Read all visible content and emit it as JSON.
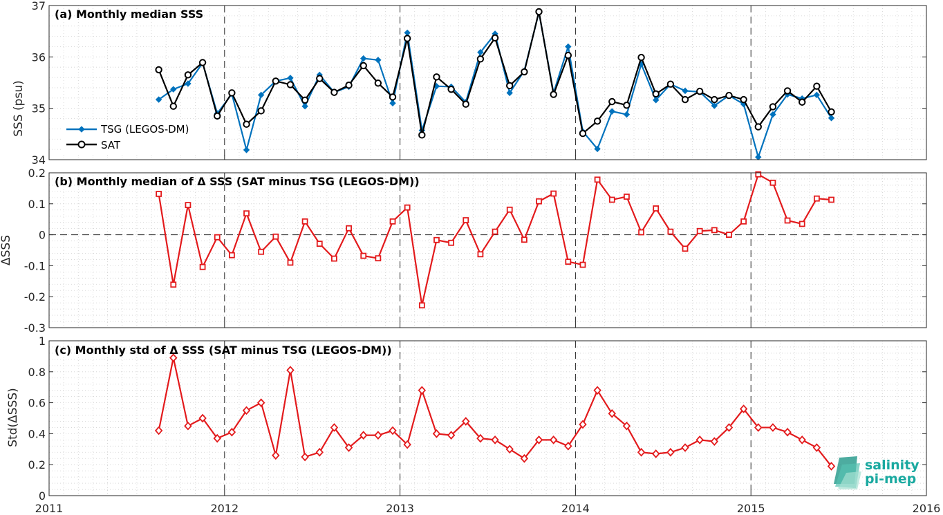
{
  "chart_data": [
    {
      "type": "line",
      "title": "(a) Monthly median SSS",
      "ylabel": "SSS (psu)",
      "ylim": [
        34,
        37
      ],
      "yticks": [
        34,
        35,
        36,
        37
      ],
      "xlim": [
        "2011",
        "2016"
      ],
      "xticks": [
        "2011",
        "2012",
        "2013",
        "2014",
        "2015",
        "2016"
      ],
      "grid": "minor dotted",
      "legend": "bottom-left",
      "x": [
        "2011-08",
        "2011-09",
        "2011-10",
        "2011-11",
        "2011-12",
        "2012-01",
        "2012-02",
        "2012-03",
        "2012-04",
        "2012-05",
        "2012-06",
        "2012-07",
        "2012-08",
        "2012-09",
        "2012-10",
        "2012-11",
        "2012-12",
        "2013-01",
        "2013-02",
        "2013-03",
        "2013-04",
        "2013-05",
        "2013-06",
        "2013-07",
        "2013-08",
        "2013-09",
        "2013-10",
        "2013-11",
        "2013-12",
        "2014-01",
        "2014-02",
        "2014-03",
        "2014-04",
        "2014-05",
        "2014-06",
        "2014-07",
        "2014-08",
        "2014-09",
        "2014-10",
        "2014-11",
        "2014-12",
        "2015-01",
        "2015-02",
        "2015-03",
        "2015-04",
        "2015-05",
        "2015-06"
      ],
      "series": [
        {
          "name": "TSG (LEGOS-DM)",
          "color": "#0072bd",
          "marker": "filled-diamond",
          "values": [
            35.17,
            35.37,
            35.48,
            35.88,
            34.9,
            35.28,
            34.19,
            35.26,
            35.53,
            35.59,
            35.04,
            35.65,
            35.31,
            35.42,
            35.97,
            35.94,
            35.1,
            36.47,
            34.57,
            35.43,
            35.42,
            35.12,
            36.09,
            36.45,
            35.3,
            35.73,
            36.87,
            35.3,
            36.2,
            34.55,
            34.21,
            34.94,
            34.88,
            35.86,
            35.16,
            35.47,
            35.34,
            35.32,
            35.05,
            35.25,
            35.08,
            34.05,
            34.88,
            35.27,
            35.19,
            35.26,
            34.81
          ]
        },
        {
          "name": "SAT",
          "color": "#000000",
          "marker": "open-circle",
          "values": [
            35.75,
            35.04,
            35.65,
            35.89,
            34.85,
            35.3,
            34.69,
            34.95,
            35.53,
            35.46,
            35.16,
            35.58,
            35.31,
            35.45,
            35.83,
            35.49,
            35.22,
            36.36,
            34.48,
            35.61,
            35.37,
            35.08,
            35.96,
            36.37,
            35.44,
            35.71,
            36.88,
            35.27,
            36.03,
            34.51,
            34.75,
            35.13,
            35.06,
            35.99,
            35.28,
            35.47,
            35.17,
            35.33,
            35.17,
            35.25,
            35.17,
            34.64,
            35.03,
            35.34,
            35.12,
            35.43,
            34.93
          ]
        }
      ]
    },
    {
      "type": "line",
      "title": "(b) Monthly median of Δ SSS (SAT minus TSG (LEGOS-DM))",
      "ylabel": "ΔSSS",
      "ylim": [
        -0.3,
        0.2
      ],
      "yticks": [
        "-0.3",
        "-0.2",
        "-0.1",
        "0",
        "0.1",
        "0.2"
      ],
      "reference_line": 0,
      "grid": "minor dotted",
      "series": [
        {
          "name": "",
          "color": "#e31a1c",
          "marker": "open-square",
          "values": [
            0.132,
            -0.161,
            0.096,
            -0.104,
            -0.008,
            -0.066,
            0.069,
            -0.055,
            -0.006,
            -0.09,
            0.043,
            -0.029,
            -0.077,
            0.021,
            -0.068,
            -0.076,
            0.043,
            0.088,
            -0.228,
            -0.017,
            -0.026,
            0.047,
            -0.063,
            0.01,
            0.081,
            -0.016,
            0.108,
            0.133,
            -0.087,
            -0.097,
            0.178,
            0.113,
            0.123,
            0.008,
            0.085,
            0.01,
            -0.045,
            0.012,
            0.015,
            0.0,
            0.043,
            0.195,
            0.168,
            0.046,
            0.035,
            0.117,
            0.113
          ]
        }
      ]
    },
    {
      "type": "line",
      "title": "(c) Monthly std of Δ SSS (SAT minus TSG (LEGOS-DM))",
      "ylabel": "Std(ΔSSS)",
      "ylim": [
        0,
        1
      ],
      "yticks": [
        "0",
        "0.2",
        "0.4",
        "0.6",
        "0.8",
        "1"
      ],
      "grid": "minor dotted",
      "series": [
        {
          "name": "",
          "color": "#e31a1c",
          "marker": "open-diamond",
          "values": [
            0.42,
            0.89,
            0.45,
            0.5,
            0.37,
            0.41,
            0.55,
            0.6,
            0.26,
            0.81,
            0.25,
            0.28,
            0.44,
            0.31,
            0.39,
            0.39,
            0.42,
            0.33,
            0.68,
            0.4,
            0.39,
            0.48,
            0.37,
            0.36,
            0.3,
            0.24,
            0.36,
            0.36,
            0.32,
            0.46,
            0.68,
            0.53,
            0.45,
            0.28,
            0.27,
            0.28,
            0.31,
            0.36,
            0.35,
            0.44,
            0.56,
            0.44,
            0.44,
            0.41,
            0.36,
            0.31,
            0.19
          ]
        }
      ]
    }
  ],
  "logo": {
    "line1": "salinity",
    "line2": "pi-mep"
  }
}
